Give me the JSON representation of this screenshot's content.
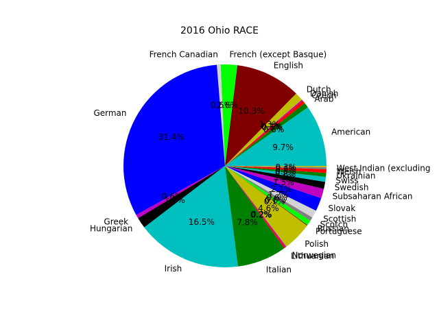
{
  "chart_data": {
    "type": "pie",
    "title": "2016 Ohio RACE",
    "start_angle_deg": 0,
    "direction": "counterclockwise",
    "slices": [
      {
        "label": "American",
        "value": 9.7,
        "pct_label": "9.7%",
        "color": "#00bfbf"
      },
      {
        "label": "Arab",
        "value": 0.8,
        "pct_label": "0.8%",
        "color": "#008000"
      },
      {
        "label": "Czech",
        "value": 0.5,
        "pct_label": "0.5%",
        "color": "#ff0000"
      },
      {
        "label": "Danish",
        "value": 0.2,
        "pct_label": "0.2%",
        "color": "#bf00bf"
      },
      {
        "label": "Dutch",
        "value": 1.3,
        "pct_label": "1.3%",
        "color": "#bfbf00"
      },
      {
        "label": "English",
        "value": 10.3,
        "pct_label": "10.3%",
        "color": "#800000"
      },
      {
        "label": "French (except Basque)",
        "value": 2.6,
        "pct_label": "2.6%",
        "color": "#00ff00"
      },
      {
        "label": "French Canadian",
        "value": 0.6,
        "pct_label": "0.6%",
        "color": "#d3d3d3"
      },
      {
        "label": "German",
        "value": 31.4,
        "pct_label": "31.4%",
        "color": "#0000ff"
      },
      {
        "label": "Greek",
        "value": 0.6,
        "pct_label": "0.6%",
        "color": "#bf00bf"
      },
      {
        "label": "Hungarian",
        "value": 1.7,
        "pct_label": "1.7%",
        "color": "#000000"
      },
      {
        "label": "Irish",
        "value": 16.5,
        "pct_label": "16.5%",
        "color": "#00bfbf"
      },
      {
        "label": "Italian",
        "value": 7.8,
        "pct_label": "7.8%",
        "color": "#008000"
      },
      {
        "label": "Lithuanian",
        "value": 0.2,
        "pct_label": "0.2%",
        "color": "#ff0000"
      },
      {
        "label": "Norwegian",
        "value": 0.2,
        "pct_label": "0.2%",
        "color": "#bf00bf"
      },
      {
        "label": "Polish",
        "value": 4.6,
        "pct_label": "4.6%",
        "color": "#bfbf00"
      },
      {
        "label": "Portuguese",
        "value": 0.1,
        "pct_label": "0.1%",
        "color": "#800000"
      },
      {
        "label": "Russian",
        "value": 0.8,
        "pct_label": "0.8%",
        "color": "#00ff00"
      },
      {
        "label": "Scotch",
        "value": 0.6,
        "pct_label": "0.6%",
        "color": "#808080"
      },
      {
        "label": "Scottish",
        "value": 1.2,
        "pct_label": "1.2%",
        "color": "#d3d3d3"
      },
      {
        "label": "Slovak",
        "value": 2.1,
        "pct_label": "2.1%",
        "color": "#0000ff"
      },
      {
        "label": "Subsaharan African",
        "value": 1.5,
        "pct_label": "1.5%",
        "color": "#bf00bf"
      },
      {
        "label": "Swedish",
        "value": 1.1,
        "pct_label": "1.1%",
        "color": "#000000"
      },
      {
        "label": "Swiss",
        "value": 0.8,
        "pct_label": "0.8%",
        "color": "#00bfbf"
      },
      {
        "label": "Ukrainian",
        "value": 0.6,
        "pct_label": "0.6%",
        "color": "#008000"
      },
      {
        "label": "Welsh",
        "value": 0.6,
        "pct_label": "0.6%",
        "color": "#ff0000"
      },
      {
        "label": "West Indian (excluding",
        "value": 0.3,
        "pct_label": "0.3%",
        "color": "#808080"
      },
      {
        "label": "",
        "value": 0.2,
        "pct_label": "",
        "color": "#bfbf00"
      }
    ]
  }
}
